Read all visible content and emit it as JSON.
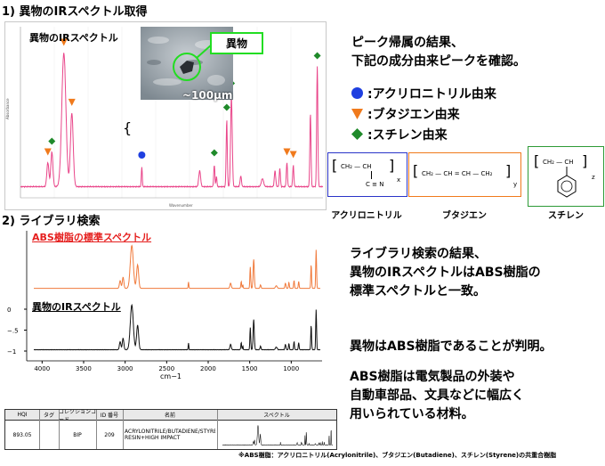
{
  "section1_title": "1) 異物のIRスペクトル取得",
  "section2_title": "2) ライブラリ検索",
  "top_chart": {
    "label": "異物のIRスペクトル",
    "inset_label": "異物",
    "inset_scale": "~100µm",
    "ylabel": "Absorbance",
    "xlabel": "Wavenumber",
    "brace": "{"
  },
  "right_text1": [
    "ピーク帰属の結果、",
    "下記の成分由来ピークを確認。"
  ],
  "legend": [
    {
      "marker": "circle",
      "color": "#1f3fe0",
      "label": ":アクリロニトリル由来"
    },
    {
      "marker": "triangle",
      "color": "#f07a1c",
      "label": ":ブタジエン由来"
    },
    {
      "marker": "diamond",
      "color": "#1f8a2a",
      "label": ":スチレン由来"
    }
  ],
  "structures": {
    "acrylonitrile": {
      "name": "アクリロニトリル",
      "formula": "CH₂ — CH",
      "sub": "C ≡ N",
      "index": "x",
      "color": "#2a34c8"
    },
    "butadiene": {
      "name": "ブタジエン",
      "formula": "CH₂ — CH = CH — CH₂",
      "index": "y",
      "color": "#f07a1c"
    },
    "styrene": {
      "name": "スチレン",
      "formula": "CH₂ — CH",
      "index": "z",
      "color": "#2e9a36"
    }
  },
  "bottom_chart": {
    "label1": "ABS樹脂の標準スペクトル",
    "label2": "異物のIRスペクトル",
    "xlabel": "cm−1",
    "xticks": [
      "4000",
      "3500",
      "3000",
      "2500",
      "2000",
      "1500",
      "1000"
    ],
    "yticks": [
      "0",
      "−.5",
      "−1"
    ],
    "colors": {
      "standard": "#f07a3c",
      "sample": "#111111"
    }
  },
  "right_text2": [
    "ライブラリ検索の結果、",
    "異物のIRスペクトルはABS樹脂の",
    "標準スペクトルと一致。"
  ],
  "right_text3": "異物はABS樹脂であることが判明。",
  "right_text4": [
    "ABS樹脂は電気製品の外装や",
    "自動車部品、文具などに幅広く",
    "用いられている材料。"
  ],
  "table": {
    "headers": [
      "HQI",
      "タグ",
      "コレクションコード",
      "ID 番号",
      "名前",
      "スペクトル"
    ],
    "row": [
      "893.05",
      "",
      "BIP",
      "209",
      "ACRYLONITRILE/BUTADIENE/STYRENE RESIN+HIGH IMPACT",
      ""
    ]
  },
  "footnote": "※ABS樹脂：アクリロニトリル(Acrylonitrile)、ブタジエン(Butadiene)、スチレン(Styrene)の共重合樹脂",
  "chart_data": {
    "type": "line",
    "xlabel": "cm−1",
    "xlim": [
      4000,
      700
    ],
    "ylim": [
      -1.25,
      0.3
    ],
    "peaks_cm1": [
      3060,
      3025,
      2920,
      2850,
      2237,
      1730,
      1602,
      1493,
      1452,
      1070,
      966,
      910,
      760,
      700
    ],
    "series": [
      {
        "name": "ABS樹脂の標準スペクトル",
        "offset": 0
      },
      {
        "name": "異物のIRスペクトル",
        "offset": -1
      }
    ]
  }
}
